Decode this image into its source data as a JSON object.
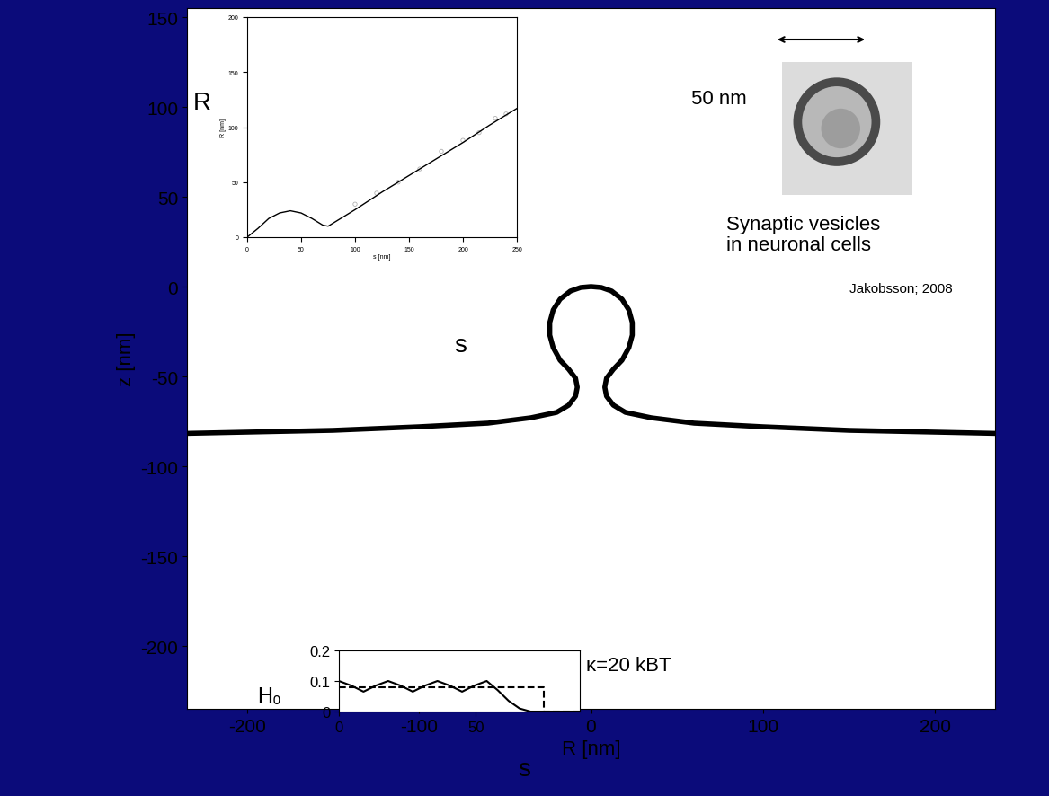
{
  "chart_data": [
    {
      "type": "line",
      "xlabel": "R [nm]",
      "ylabel": "z [nm]",
      "color": "#000000",
      "x": [
        -250,
        -200,
        -150,
        -100,
        -60,
        -35,
        -20,
        -13,
        -9,
        -8,
        -9,
        -13,
        -18,
        -22,
        -24,
        -24,
        -22,
        -18,
        -12,
        -6,
        0,
        6,
        12,
        18,
        22,
        24,
        24,
        22,
        18,
        13,
        9,
        8,
        9,
        13,
        20,
        35,
        60,
        100,
        150,
        200,
        250
      ],
      "values": [
        -82,
        -81,
        -80,
        -78,
        -76,
        -73,
        -70,
        -66,
        -61,
        -56,
        -51,
        -46,
        -41,
        -34,
        -27,
        -20,
        -13,
        -7,
        -2.5,
        -0.5,
        0,
        -0.5,
        -2.5,
        -7,
        -13,
        -20,
        -27,
        -34,
        -41,
        -46,
        -51,
        -56,
        -61,
        -66,
        -70,
        -73,
        -76,
        -78,
        -80,
        -81,
        -82
      ],
      "xlim": [
        -235,
        235
      ],
      "ylim": [
        -235,
        155
      ],
      "xticks": [
        -200,
        -100,
        0,
        100,
        200
      ],
      "yticks": [
        150,
        100,
        50,
        0,
        -50,
        -100,
        -150,
        -200
      ],
      "annotations": [
        "50 nm",
        "Synaptic vesicles",
        "in neuronal cells",
        "Jakobsson; 2008"
      ]
    },
    {
      "type": "line",
      "xlabel": "s [nm]",
      "ylabel": "R [nm]",
      "xlim": [
        0,
        250
      ],
      "ylim": [
        0,
        200
      ],
      "xticks": [
        0,
        50,
        100,
        150,
        200,
        250
      ],
      "yticks": [
        0,
        50,
        100,
        150,
        200
      ],
      "series": [
        {
          "type": "line",
          "color": "#000000",
          "line_style": "solid",
          "x": [
            0,
            10,
            20,
            30,
            40,
            50,
            60,
            70,
            75,
            100,
            125,
            150,
            175,
            200,
            225,
            250
          ],
          "values": [
            0,
            8,
            17,
            22,
            24,
            22,
            17,
            11,
            10,
            25,
            41,
            56,
            71,
            86,
            102,
            117
          ]
        },
        {
          "type": "scatter",
          "color": "#b0b0b0",
          "marker": "o",
          "x": [
            100,
            120,
            140,
            160,
            180,
            200,
            215,
            230,
            240
          ],
          "values": [
            30,
            40,
            50,
            62,
            78,
            88,
            95,
            108,
            112
          ]
        }
      ],
      "annotations": [
        "R",
        "s"
      ]
    },
    {
      "type": "line",
      "xlim": [
        0,
        88
      ],
      "ylim": [
        0,
        0.2
      ],
      "xticks": [
        0,
        50
      ],
      "yticks": [
        0,
        0.1,
        0.2
      ],
      "series": [
        {
          "type": "line",
          "color": "#000000",
          "line_style": "solid",
          "x": [
            0,
            4.5,
            9,
            13.5,
            18,
            22.5,
            27,
            31.5,
            36,
            40.5,
            45,
            49.5,
            54,
            58,
            62,
            66,
            70,
            88
          ],
          "values": [
            0.1,
            0.085,
            0.065,
            0.085,
            0.1,
            0.085,
            0.065,
            0.085,
            0.1,
            0.085,
            0.065,
            0.085,
            0.1,
            0.07,
            0.035,
            0.01,
            0,
            0
          ]
        },
        {
          "type": "line",
          "color": "#000000",
          "line_style": "dashed",
          "x": [
            0,
            75,
            75,
            88
          ],
          "values": [
            0.08,
            0.08,
            0,
            0
          ]
        }
      ],
      "annotations": [
        "H₀",
        "κ=20 kBT",
        "s"
      ]
    }
  ]
}
